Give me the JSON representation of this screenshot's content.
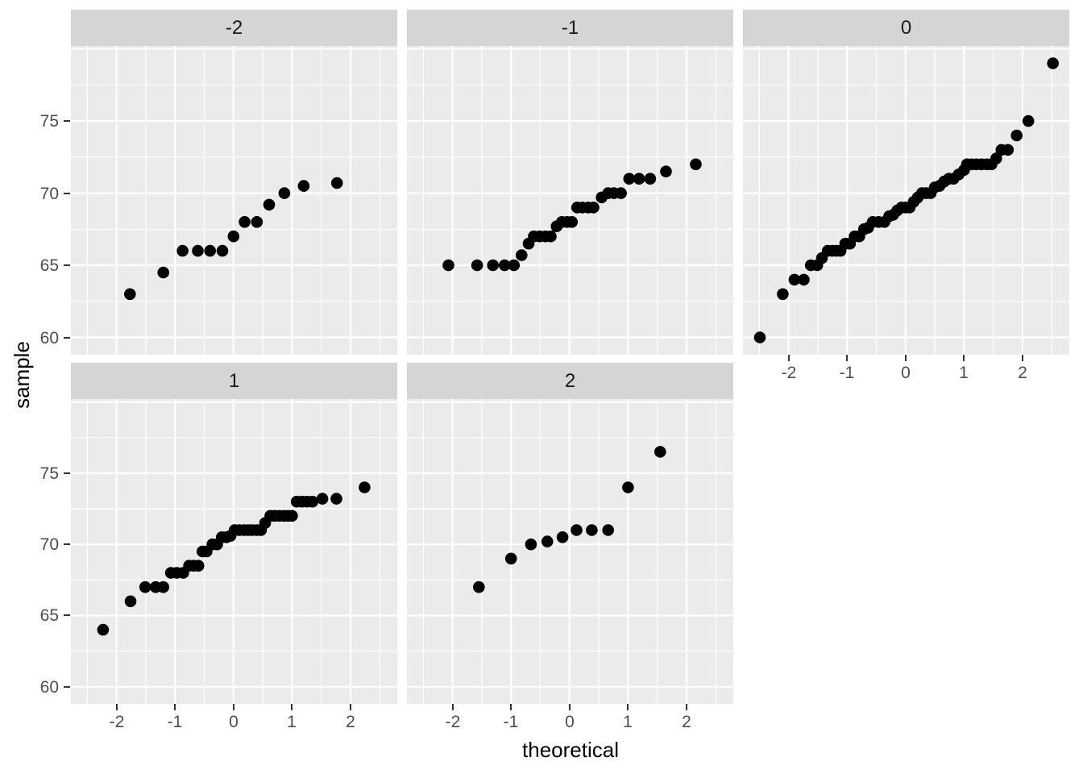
{
  "chart_data": {
    "type": "scatter",
    "subtype": "faceted-qq-plot",
    "title": "",
    "xlabel": "theoretical",
    "ylabel": "sample",
    "x_ticks": [
      "-2",
      "-1",
      "0",
      "1",
      "2"
    ],
    "x_tick_values": [
      -2,
      -1,
      0,
      1,
      2
    ],
    "y_ticks": [
      "75",
      "70",
      "65",
      "60"
    ],
    "y_tick_values": [
      75,
      70,
      65,
      60
    ],
    "xlim": [
      -2.78,
      2.8
    ],
    "ylim": [
      58.8,
      80.2
    ],
    "x_minor_step": 0.5,
    "y_minor_step": 2.5,
    "grid": "white major and minor gridlines on grey panel",
    "legend": "none",
    "facets": [
      {
        "label": "-2",
        "points": [
          [
            -1.77,
            63
          ],
          [
            -1.2,
            64.5
          ],
          [
            -0.87,
            66
          ],
          [
            -0.61,
            66
          ],
          [
            -0.4,
            66
          ],
          [
            -0.19,
            66
          ],
          [
            0.0,
            67
          ],
          [
            0.19,
            68
          ],
          [
            0.4,
            68
          ],
          [
            0.61,
            69.2
          ],
          [
            0.87,
            70
          ],
          [
            1.2,
            70.5
          ],
          [
            1.77,
            70.7
          ]
        ]
      },
      {
        "label": "-1",
        "points": [
          [
            -2.07,
            65
          ],
          [
            -1.58,
            65
          ],
          [
            -1.31,
            65
          ],
          [
            -1.11,
            65
          ],
          [
            -0.95,
            65
          ],
          [
            -0.82,
            65.7
          ],
          [
            -0.7,
            66.5
          ],
          [
            -0.61,
            67
          ],
          [
            -0.51,
            67
          ],
          [
            -0.41,
            67
          ],
          [
            -0.32,
            67
          ],
          [
            -0.22,
            67.7
          ],
          [
            -0.13,
            68
          ],
          [
            -0.04,
            68
          ],
          [
            0.04,
            68
          ],
          [
            0.13,
            69
          ],
          [
            0.22,
            69
          ],
          [
            0.32,
            69
          ],
          [
            0.41,
            69
          ],
          [
            0.55,
            69.7
          ],
          [
            0.66,
            70
          ],
          [
            0.76,
            70
          ],
          [
            0.88,
            70
          ],
          [
            1.02,
            71
          ],
          [
            1.19,
            71
          ],
          [
            1.38,
            71
          ],
          [
            1.65,
            71.5
          ],
          [
            2.16,
            72
          ]
        ]
      },
      {
        "label": "0",
        "points": [
          [
            -2.49,
            60
          ],
          [
            -2.1,
            63
          ],
          [
            -1.9,
            64
          ],
          [
            -1.74,
            64
          ],
          [
            -1.62,
            65
          ],
          [
            -1.51,
            65
          ],
          [
            -1.43,
            65.5
          ],
          [
            -1.33,
            66
          ],
          [
            -1.25,
            66
          ],
          [
            -1.18,
            66
          ],
          [
            -1.11,
            66
          ],
          [
            -1.03,
            66.5
          ],
          [
            -0.95,
            66.5
          ],
          [
            -0.87,
            67
          ],
          [
            -0.79,
            67
          ],
          [
            -0.71,
            67.5
          ],
          [
            -0.64,
            67.6
          ],
          [
            -0.56,
            68
          ],
          [
            -0.46,
            68
          ],
          [
            -0.36,
            68
          ],
          [
            -0.28,
            68.4
          ],
          [
            -0.21,
            68.5
          ],
          [
            -0.14,
            68.8
          ],
          [
            -0.07,
            69
          ],
          [
            0.0,
            69
          ],
          [
            0.07,
            69
          ],
          [
            0.14,
            69.4
          ],
          [
            0.21,
            69.7
          ],
          [
            0.28,
            70
          ],
          [
            0.35,
            70
          ],
          [
            0.43,
            70
          ],
          [
            0.5,
            70.4
          ],
          [
            0.58,
            70.5
          ],
          [
            0.66,
            70.8
          ],
          [
            0.74,
            71
          ],
          [
            0.82,
            71
          ],
          [
            0.91,
            71.3
          ],
          [
            1.0,
            71.6
          ],
          [
            1.05,
            72
          ],
          [
            1.13,
            72
          ],
          [
            1.21,
            72
          ],
          [
            1.3,
            72
          ],
          [
            1.39,
            72
          ],
          [
            1.47,
            72
          ],
          [
            1.55,
            72.4
          ],
          [
            1.64,
            73
          ],
          [
            1.75,
            73
          ],
          [
            1.9,
            74
          ],
          [
            2.1,
            75
          ],
          [
            2.52,
            79
          ]
        ]
      },
      {
        "label": "1",
        "points": [
          [
            -2.23,
            64
          ],
          [
            -1.76,
            66
          ],
          [
            -1.51,
            67
          ],
          [
            -1.33,
            67
          ],
          [
            -1.2,
            67
          ],
          [
            -1.07,
            68
          ],
          [
            -0.97,
            68
          ],
          [
            -0.86,
            68
          ],
          [
            -0.76,
            68.5
          ],
          [
            -0.68,
            68.5
          ],
          [
            -0.6,
            68.5
          ],
          [
            -0.53,
            69.5
          ],
          [
            -0.46,
            69.5
          ],
          [
            -0.36,
            70
          ],
          [
            -0.28,
            70
          ],
          [
            -0.2,
            70.5
          ],
          [
            -0.12,
            70.5
          ],
          [
            -0.05,
            70.6
          ],
          [
            0.02,
            71
          ],
          [
            0.1,
            71
          ],
          [
            0.18,
            71
          ],
          [
            0.25,
            71
          ],
          [
            0.32,
            71
          ],
          [
            0.4,
            71
          ],
          [
            0.47,
            71
          ],
          [
            0.54,
            71.5
          ],
          [
            0.63,
            72
          ],
          [
            0.7,
            72
          ],
          [
            0.78,
            72
          ],
          [
            0.86,
            72
          ],
          [
            0.93,
            72
          ],
          [
            1.0,
            72
          ],
          [
            1.08,
            73
          ],
          [
            1.17,
            73
          ],
          [
            1.26,
            73
          ],
          [
            1.35,
            73
          ],
          [
            1.52,
            73.2
          ],
          [
            1.76,
            73.2
          ],
          [
            2.24,
            74
          ]
        ]
      },
      {
        "label": "2",
        "points": [
          [
            -1.55,
            67
          ],
          [
            -1.0,
            69
          ],
          [
            -0.66,
            70
          ],
          [
            -0.38,
            70.2
          ],
          [
            -0.12,
            70.5
          ],
          [
            0.12,
            71
          ],
          [
            0.38,
            71
          ],
          [
            0.66,
            71
          ],
          [
            1.0,
            74
          ],
          [
            1.55,
            76.5
          ]
        ]
      }
    ]
  },
  "style": {
    "background": "#FFFFFF",
    "panel_bg": "#EBEBEB",
    "strip_bg": "#D5D5D5",
    "grid_color": "#FFFFFF",
    "point_color": "#000000",
    "axis_text_color": "#4D4D4D",
    "strip_text_color": "#1A1A1A",
    "axis_title_color": "#000000",
    "tick_color": "#333333"
  }
}
